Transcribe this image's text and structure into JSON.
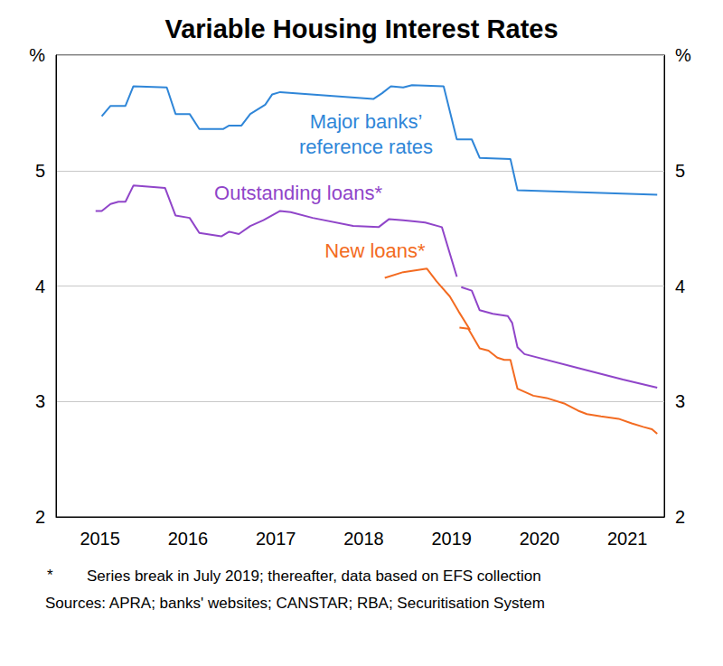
{
  "chart_data": {
    "type": "line",
    "title": "Variable Housing Interest Rates",
    "xlim": [
      2015,
      2021.92
    ],
    "xticks": [
      {
        "value": 2015.5,
        "label": "2015"
      },
      {
        "value": 2016.5,
        "label": "2016"
      },
      {
        "value": 2017.5,
        "label": "2017"
      },
      {
        "value": 2018.5,
        "label": "2018"
      },
      {
        "value": 2019.5,
        "label": "2019"
      },
      {
        "value": 2020.5,
        "label": "2020"
      },
      {
        "value": 2021.5,
        "label": "2021"
      }
    ],
    "ylim": [
      2,
      6
    ],
    "yticks": [
      2,
      3,
      4,
      5,
      {
        "value": 6,
        "label": "%"
      }
    ],
    "grid": true,
    "series": [
      {
        "name": "Major banks’\nreference rates",
        "color": "#2f86d8",
        "segments": [
          {
            "x": [
              2015.52,
              2015.62,
              2015.79,
              2015.88,
              2016.26,
              2016.36,
              2016.52,
              2016.63,
              2016.9,
              2016.97,
              2017.11,
              2017.21,
              2017.38,
              2017.46,
              2017.55,
              2018.61,
              2018.71,
              2018.81,
              2018.95,
              2019.05,
              2019.41,
              2019.56,
              2019.73,
              2019.82,
              2020.17,
              2020.25,
              2021.84
            ],
            "values": [
              5.47,
              5.56,
              5.56,
              5.73,
              5.72,
              5.49,
              5.49,
              5.36,
              5.36,
              5.39,
              5.39,
              5.49,
              5.57,
              5.66,
              5.68,
              5.62,
              5.67,
              5.73,
              5.72,
              5.74,
              5.73,
              5.27,
              5.27,
              5.11,
              5.1,
              4.83,
              4.79
            ]
          }
        ]
      },
      {
        "name": "Outstanding loans*",
        "color": "#9045c9",
        "segments": [
          {
            "x": [
              2015.45,
              2015.52,
              2015.62,
              2015.71,
              2015.79,
              2015.88,
              2016.24,
              2016.36,
              2016.52,
              2016.63,
              2016.88,
              2016.97,
              2017.08,
              2017.21,
              2017.36,
              2017.55,
              2017.67,
              2017.92,
              2018.38,
              2018.67,
              2018.79,
              2018.95,
              2019.08,
              2019.2,
              2019.39,
              2019.56
            ],
            "values": [
              4.65,
              4.65,
              4.71,
              4.73,
              4.73,
              4.87,
              4.85,
              4.61,
              4.59,
              4.46,
              4.43,
              4.47,
              4.45,
              4.52,
              4.57,
              4.65,
              4.64,
              4.59,
              4.52,
              4.51,
              4.58,
              4.57,
              4.56,
              4.55,
              4.51,
              4.08
            ]
          },
          {
            "x": [
              2019.61,
              2019.73,
              2019.82,
              2019.97,
              2020.14,
              2020.19,
              2020.25,
              2020.33,
              2020.94,
              2021.45,
              2021.84
            ],
            "values": [
              3.99,
              3.96,
              3.79,
              3.76,
              3.74,
              3.68,
              3.47,
              3.41,
              3.29,
              3.19,
              3.12
            ]
          }
        ]
      },
      {
        "name": "New loans*",
        "color": "#f36b21",
        "segments": [
          {
            "x": [
              2018.74,
              2018.95,
              2019.22,
              2019.33,
              2019.48,
              2019.58,
              2019.71
            ],
            "values": [
              4.07,
              4.12,
              4.15,
              4.04,
              3.91,
              3.78,
              3.62
            ]
          },
          {
            "x": [
              2019.59,
              2019.69,
              2019.82,
              2019.92,
              2020.02,
              2020.1,
              2020.17,
              2020.25,
              2020.43,
              2020.58,
              2020.79,
              2020.94,
              2021.04,
              2021.2,
              2021.4,
              2021.55,
              2021.68,
              2021.78,
              2021.84
            ],
            "values": [
              3.64,
              3.63,
              3.46,
              3.44,
              3.38,
              3.36,
              3.36,
              3.11,
              3.05,
              3.03,
              2.98,
              2.92,
              2.89,
              2.87,
              2.85,
              2.81,
              2.78,
              2.76,
              2.72
            ]
          }
        ]
      }
    ],
    "footnote": {
      "symbol": "*",
      "text": "Series break in July 2019; thereafter, data based on EFS collection"
    },
    "sources": "Sources: APRA; banks' websites; CANSTAR; RBA; Securitisation System"
  }
}
